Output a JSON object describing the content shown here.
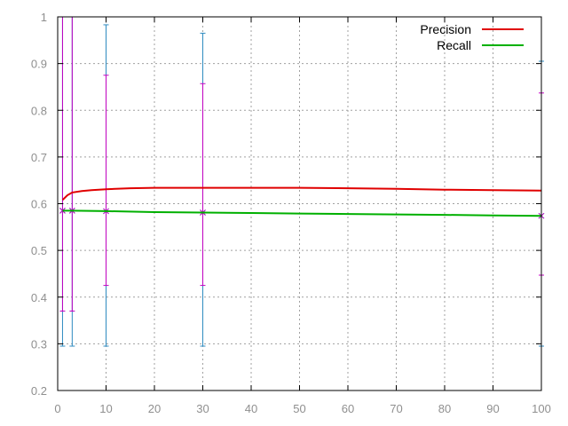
{
  "chart_data": {
    "type": "line",
    "title": "",
    "xlabel": "",
    "ylabel": "",
    "xlim": [
      0,
      100
    ],
    "ylim": [
      0.2,
      1
    ],
    "x_ticks": [
      "0",
      "10",
      "20",
      "30",
      "40",
      "50",
      "60",
      "70",
      "80",
      "90",
      "100"
    ],
    "y_ticks": [
      "0.2",
      "0.3",
      "0.4",
      "0.5",
      "0.6",
      "0.7",
      "0.8",
      "0.9",
      "1"
    ],
    "grid": true,
    "legend_position": "top-right",
    "series": [
      {
        "name": "Precision",
        "color": "#e00000",
        "x": [
          1,
          2,
          3,
          5,
          7,
          10,
          15,
          20,
          30,
          40,
          50,
          60,
          70,
          80,
          90,
          100
        ],
        "y": [
          0.608,
          0.618,
          0.624,
          0.627,
          0.629,
          0.631,
          0.633,
          0.634,
          0.634,
          0.634,
          0.634,
          0.633,
          0.632,
          0.63,
          0.629,
          0.628
        ]
      },
      {
        "name": "Recall",
        "color": "#00b000",
        "x": [
          1,
          3,
          10,
          20,
          30,
          40,
          50,
          60,
          70,
          80,
          90,
          100
        ],
        "y": [
          0.585,
          0.585,
          0.584,
          0.582,
          0.581,
          0.58,
          0.579,
          0.578,
          0.577,
          0.576,
          0.575,
          0.574
        ]
      }
    ],
    "error_bars": [
      {
        "color": "#2e8bc0",
        "points": [
          {
            "x": 1,
            "y": 0.585,
            "low": 0.295,
            "high": 1.0
          },
          {
            "x": 3,
            "y": 0.585,
            "low": 0.295,
            "high": 1.0
          },
          {
            "x": 10,
            "y": 0.584,
            "low": 0.295,
            "high": 0.983
          },
          {
            "x": 30,
            "y": 0.581,
            "low": 0.295,
            "high": 0.965
          },
          {
            "x": 100,
            "y": 0.574,
            "low": 0.295,
            "high": 0.905
          }
        ]
      },
      {
        "color": "#c000c0",
        "points": [
          {
            "x": 1,
            "y": 0.585,
            "low": 0.37,
            "high": 1.0
          },
          {
            "x": 3,
            "y": 0.585,
            "low": 0.37,
            "high": 1.0
          },
          {
            "x": 10,
            "y": 0.584,
            "low": 0.425,
            "high": 0.875
          },
          {
            "x": 30,
            "y": 0.581,
            "low": 0.425,
            "high": 0.857
          },
          {
            "x": 100,
            "y": 0.574,
            "low": 0.447,
            "high": 0.837
          }
        ]
      }
    ]
  }
}
